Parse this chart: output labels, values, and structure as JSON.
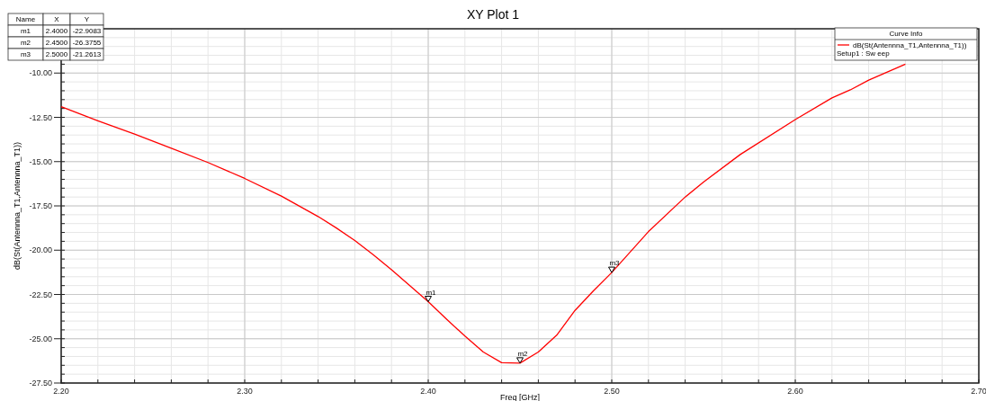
{
  "chart_data": {
    "type": "line",
    "title": "XY Plot 1",
    "xlabel": "Freq [GHz]",
    "ylabel": "dB(St(Antennna_T1,Antennna_T1))",
    "legend_title": "Curve Info",
    "x": [
      2.2,
      2.22,
      2.24,
      2.26,
      2.28,
      2.3,
      2.32,
      2.34,
      2.35,
      2.36,
      2.37,
      2.38,
      2.39,
      2.4,
      2.41,
      2.42,
      2.43,
      2.44,
      2.45,
      2.46,
      2.47,
      2.48,
      2.49,
      2.5,
      2.52,
      2.54,
      2.55,
      2.57,
      2.6,
      2.62,
      2.63,
      2.64,
      2.66
    ],
    "series": [
      {
        "name": "dB(St(Antennna_T1,Antennna_T1))",
        "color": "#ff0000",
        "values": [
          -11.9,
          -12.7,
          -13.45,
          -14.25,
          -15.05,
          -15.95,
          -16.95,
          -18.1,
          -18.75,
          -19.45,
          -20.25,
          -21.1,
          -22.0,
          -22.9083,
          -23.9,
          -24.85,
          -25.75,
          -26.35,
          -26.3755,
          -25.75,
          -24.8,
          -23.4,
          -22.3,
          -21.2613,
          -18.95,
          -17.0,
          -16.15,
          -14.6,
          -12.63,
          -11.4,
          -10.95,
          -10.4,
          -9.5
        ]
      }
    ],
    "xlim": [
      2.2,
      2.7
    ],
    "ylim": [
      -27.5,
      -7.5
    ],
    "xticks": [
      {
        "value": 2.2,
        "label": "2.20"
      },
      {
        "value": 2.3,
        "label": "2.30"
      },
      {
        "value": 2.4,
        "label": "2.40"
      },
      {
        "value": 2.5,
        "label": "2.50"
      },
      {
        "value": 2.6,
        "label": "2.60"
      },
      {
        "value": 2.7,
        "label": "2.70"
      }
    ],
    "yticks": [
      {
        "value": -27.5,
        "label": "-27.50"
      },
      {
        "value": -25,
        "label": "-25.00"
      },
      {
        "value": -22.5,
        "label": "-22.50"
      },
      {
        "value": -20,
        "label": "-20.00"
      },
      {
        "value": -17.5,
        "label": "-17.50"
      },
      {
        "value": -15,
        "label": "-15.00"
      },
      {
        "value": -12.5,
        "label": "-12.50"
      },
      {
        "value": -10,
        "label": "-10.00"
      }
    ],
    "grid": true,
    "legend": "top right",
    "marker": "none",
    "line_style": "solid",
    "annotations": [
      {
        "text": "m1",
        "x": 2.4,
        "y": -22.9083
      },
      {
        "text": "m2",
        "x": 2.45,
        "y": -26.3755
      },
      {
        "text": "m3",
        "x": 2.5,
        "y": -21.2613
      },
      "Name",
      "X",
      "Y",
      "m1",
      "2.4000",
      "-22.9083",
      "m2",
      "2.4500",
      "-26.3755",
      "m3",
      "2.5000",
      "-21.2613",
      "Setup1 : Sw eep"
    ]
  }
}
